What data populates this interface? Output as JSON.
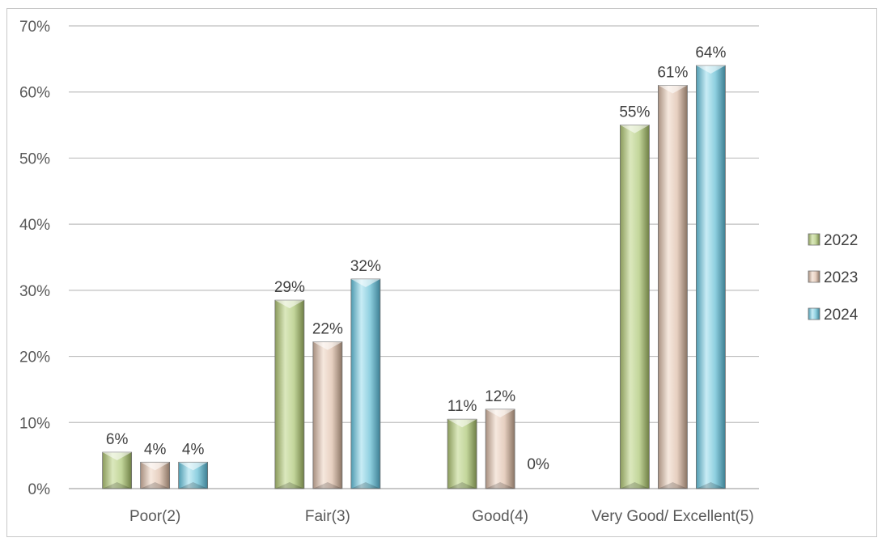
{
  "chart_data": {
    "type": "bar",
    "title": "",
    "xlabel": "",
    "ylabel": "",
    "categories": [
      "Poor(2)",
      "Fair(3)",
      "Good(4)",
      "Very Good/ Excellent(5)"
    ],
    "series": [
      {
        "name": "2022",
        "values": [
          0.055,
          0.285,
          0.105,
          0.55
        ],
        "labels": [
          "6%",
          "29%",
          "11%",
          "55%"
        ],
        "color": "#c3d69b"
      },
      {
        "name": "2023",
        "values": [
          0.04,
          0.222,
          0.12,
          0.61
        ],
        "labels": [
          "4%",
          "22%",
          "12%",
          "61%"
        ],
        "color": "#e6cfc0"
      },
      {
        "name": "2024",
        "values": [
          0.04,
          0.317,
          0.0,
          0.64
        ],
        "labels": [
          "4%",
          "32%",
          "0%",
          "64%"
        ],
        "color": "#8fd0e0"
      }
    ],
    "ylim": [
      0,
      0.7
    ],
    "yticks": [
      "0%",
      "10%",
      "20%",
      "30%",
      "40%",
      "50%",
      "60%",
      "70%"
    ],
    "grid": true,
    "legend": "right"
  }
}
